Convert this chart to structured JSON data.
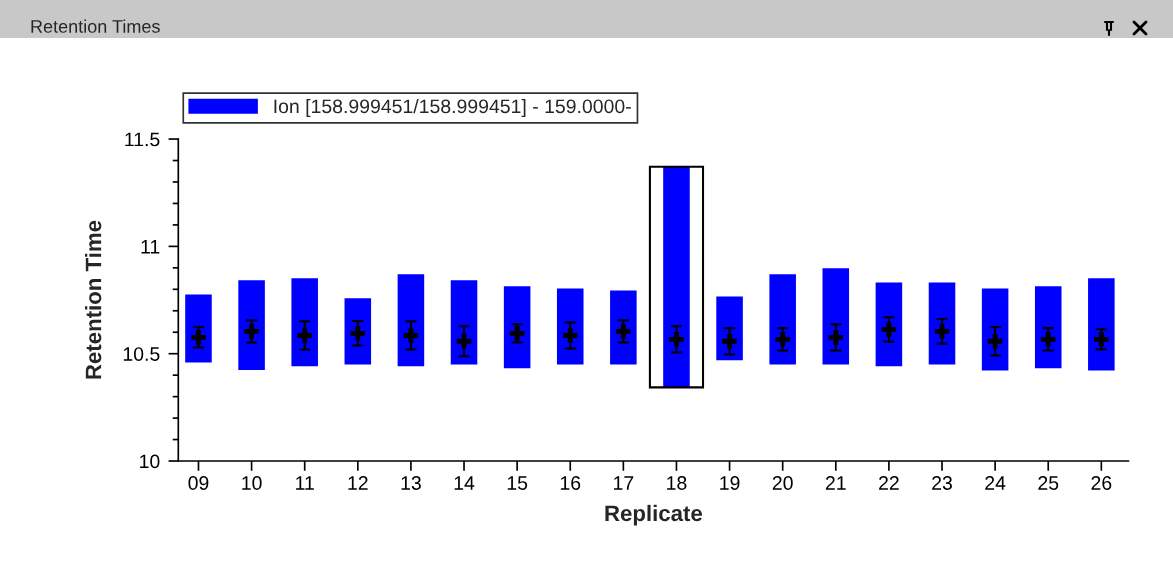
{
  "chart_data": {
    "type": "bar",
    "title": "Retention Times",
    "xlabel": "Replicate",
    "ylabel": "Retention Time",
    "categories": [
      "09",
      "10",
      "11",
      "12",
      "13",
      "14",
      "15",
      "16",
      "17",
      "18",
      "19",
      "20",
      "21",
      "22",
      "23",
      "24",
      "25",
      "26"
    ],
    "series": [
      {
        "name": "Ion [158.999451/158.999451] - 159.0000-",
        "color": "#0000ff",
        "base": [
          10.459,
          10.424,
          10.441,
          10.45,
          10.441,
          10.45,
          10.432,
          10.45,
          10.45,
          10.343,
          10.469,
          10.45,
          10.45,
          10.441,
          10.45,
          10.422,
          10.432,
          10.422
        ],
        "values": [
          0.317,
          0.418,
          0.41,
          0.308,
          0.429,
          0.392,
          0.382,
          0.354,
          0.345,
          1.028,
          0.298,
          0.42,
          0.448,
          0.391,
          0.382,
          0.382,
          0.382,
          0.429
        ]
      },
      {
        "color": "#000000",
        "type": "scatter",
        "marker": "cross",
        "values": [
          10.576,
          10.604,
          10.585,
          10.595,
          10.585,
          10.558,
          10.595,
          10.585,
          10.604,
          10.567,
          10.558,
          10.567,
          10.576,
          10.613,
          10.604,
          10.558,
          10.567,
          10.567
        ],
        "errors": [
          0.047,
          0.052,
          0.066,
          0.057,
          0.066,
          0.07,
          0.042,
          0.061,
          0.052,
          0.061,
          0.061,
          0.052,
          0.061,
          0.057,
          0.057,
          0.066,
          0.052,
          0.047
        ]
      }
    ],
    "ylim": [
      10,
      11.5
    ],
    "yticks": [
      10,
      {
        "value": 10.1,
        "label": null
      },
      {
        "value": 10.2,
        "label": null
      },
      {
        "value": 10.3,
        "label": null
      },
      {
        "value": 10.4,
        "label": null
      },
      10.5,
      {
        "value": 10.6,
        "label": null
      },
      {
        "value": 10.7,
        "label": null
      },
      {
        "value": 10.8,
        "label": null
      },
      {
        "value": 10.9,
        "label": null
      },
      11,
      {
        "value": 11.1,
        "label": null
      },
      {
        "value": 11.2,
        "label": null
      },
      {
        "value": 11.3,
        "label": null
      },
      {
        "value": 11.4,
        "label": null
      },
      11.5
    ],
    "grid": false,
    "legend": "top left"
  }
}
